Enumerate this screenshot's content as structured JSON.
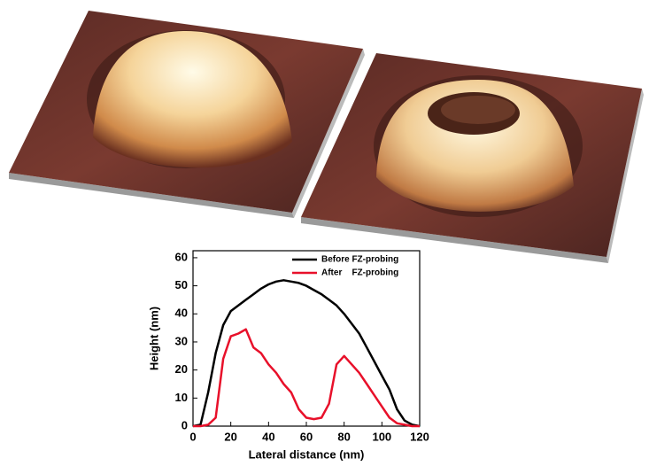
{
  "chart_data": {
    "type": "line",
    "xlabel": "Lateral distance (nm)",
    "ylabel": "Height (nm)",
    "x": [
      0,
      4,
      8,
      12,
      16,
      20,
      24,
      28,
      32,
      36,
      40,
      44,
      48,
      52,
      56,
      60,
      64,
      68,
      72,
      76,
      80,
      84,
      88,
      92,
      96,
      100,
      104,
      108,
      112,
      116,
      120
    ],
    "series": [
      {
        "name": "Before FZ-probing",
        "color": "#000000",
        "values": [
          0,
          0.5,
          12,
          26,
          36,
          41,
          43,
          45,
          47,
          49,
          50.5,
          51.5,
          52,
          51.5,
          51,
          50,
          48.5,
          47,
          45,
          43,
          40,
          36.5,
          33,
          28,
          23,
          18,
          13,
          6,
          2,
          0.5,
          0
        ]
      },
      {
        "name": "After    FZ-probing",
        "color": "#e8102a",
        "values": [
          0,
          0,
          0.5,
          3,
          24,
          32,
          33,
          34.5,
          28,
          26,
          22,
          19,
          15,
          12,
          6,
          3,
          2.5,
          3,
          8,
          22,
          25,
          22,
          19,
          15,
          11,
          7,
          3,
          1,
          0.5,
          0,
          0
        ]
      }
    ],
    "xlim": [
      0,
      120
    ],
    "xticks": [
      0,
      20,
      40,
      60,
      80,
      100,
      120
    ],
    "ylim": [
      0,
      62.5
    ],
    "yticks": [
      0,
      10,
      20,
      30,
      40,
      50,
      60
    ],
    "legend": "upper-right"
  }
}
